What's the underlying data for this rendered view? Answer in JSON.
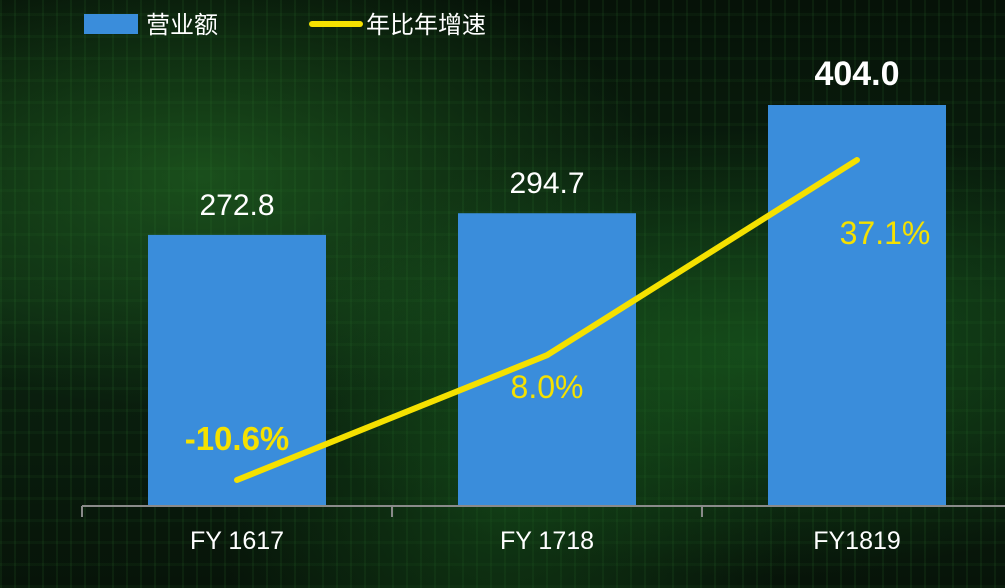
{
  "chart_data": {
    "type": "bar",
    "categories": [
      "FY 1617",
      "FY 1718",
      "FY1819"
    ],
    "series": [
      {
        "name": "营业额",
        "type": "bar",
        "values": [
          272.8,
          294.7,
          404.0
        ],
        "labels": [
          "272.8",
          "294.7",
          "404.0"
        ],
        "color": "#3a8ddb"
      },
      {
        "name": "年比年增速",
        "type": "line",
        "values": [
          -10.6,
          8.0,
          37.1
        ],
        "labels": [
          "-10.6%",
          "8.0%",
          "37.1%"
        ],
        "color": "#f5e100"
      }
    ],
    "legend": {
      "position": "top-left"
    },
    "grid": false,
    "colors": {
      "axis": "#8a8a8a",
      "text": "#ffffff",
      "line_label": "#f5e100"
    }
  }
}
